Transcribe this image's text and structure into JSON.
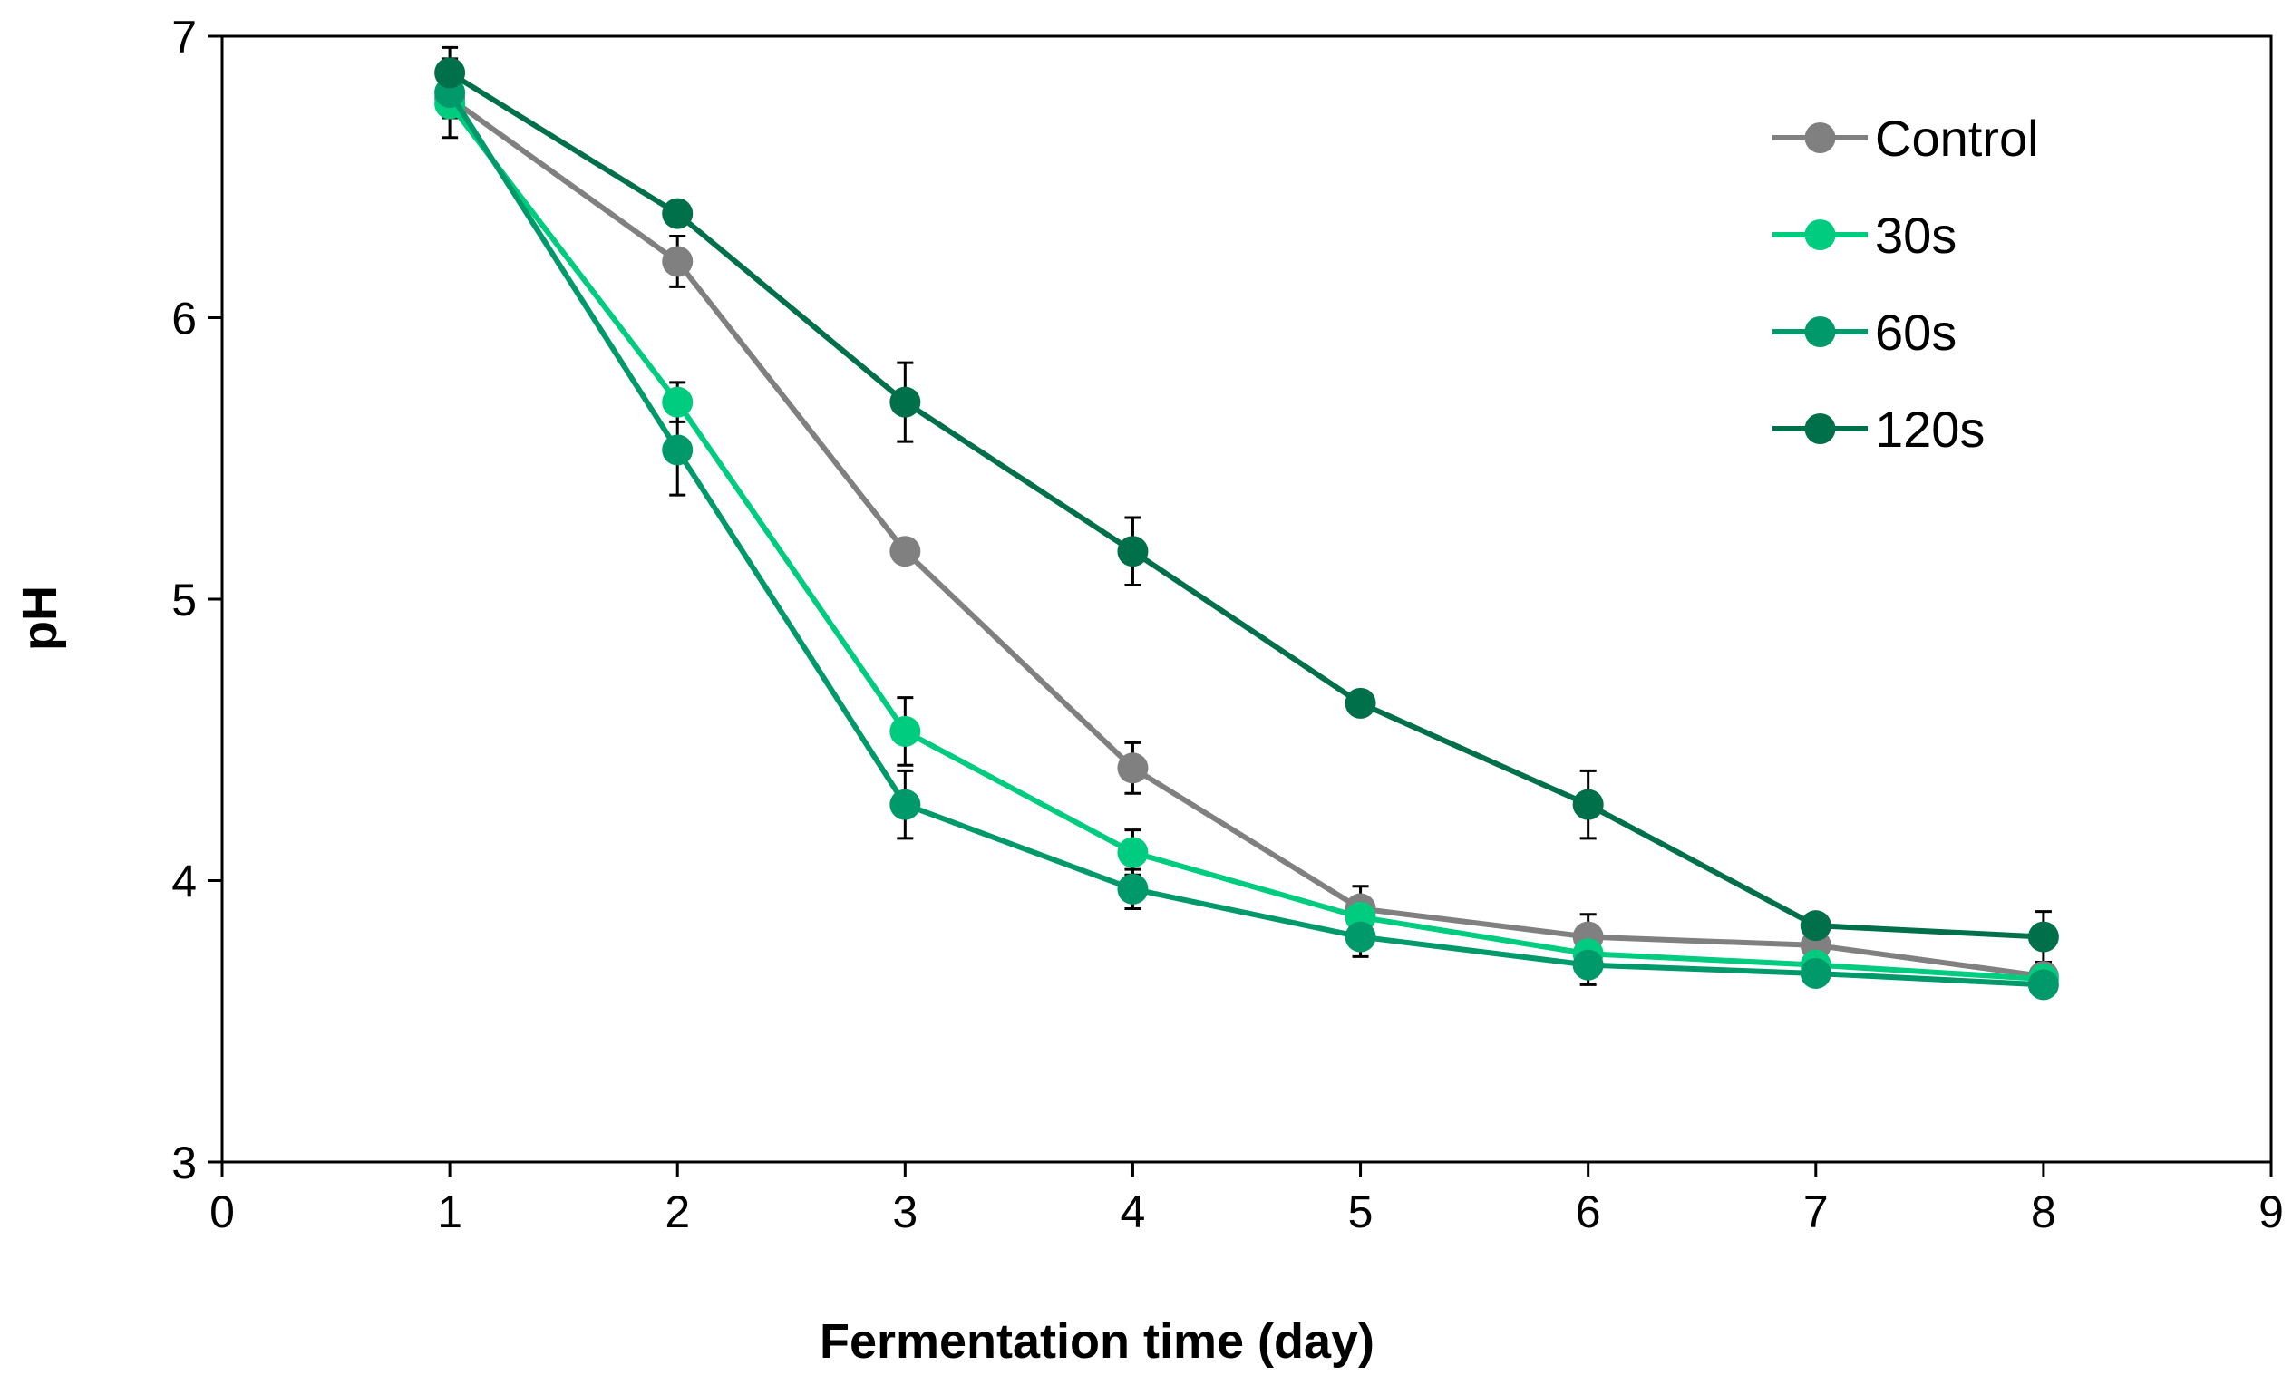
{
  "chart_data": {
    "type": "line",
    "title": "",
    "xlabel": "Fermentation time (day)",
    "ylabel": "pH",
    "xlim": [
      0,
      9
    ],
    "ylim": [
      3,
      7
    ],
    "xticks": [
      "0",
      "1",
      "2",
      "3",
      "4",
      "5",
      "6",
      "7",
      "8",
      "9"
    ],
    "yticks": [
      "3",
      "4",
      "5",
      "6",
      "7"
    ],
    "grid": false,
    "legend_position": "top-right",
    "x": [
      1,
      2,
      3,
      4,
      5,
      6,
      7,
      8
    ],
    "series": [
      {
        "name": "Control",
        "color": "#808080",
        "values": [
          6.78,
          6.2,
          5.17,
          4.4,
          3.9,
          3.8,
          3.77,
          3.66
        ],
        "errors": [
          0.14,
          0.09,
          0.04,
          0.09,
          0.08,
          0.08,
          0.05,
          0.05
        ]
      },
      {
        "name": "30s",
        "color": "#00CC80",
        "values": [
          6.76,
          5.7,
          4.53,
          4.1,
          3.87,
          3.74,
          3.7,
          3.65
        ],
        "errors": [
          0.05,
          0.07,
          0.12,
          0.08,
          0.05,
          0.04,
          0.04,
          0.04
        ]
      },
      {
        "name": "60s",
        "color": "#00996A",
        "values": [
          6.8,
          5.53,
          4.27,
          3.97,
          3.8,
          3.7,
          3.67,
          3.63
        ],
        "errors": [
          0.05,
          0.16,
          0.12,
          0.07,
          0.07,
          0.07,
          0.04,
          0.04
        ]
      },
      {
        "name": "120s",
        "color": "#00704A",
        "values": [
          6.87,
          6.37,
          5.7,
          5.17,
          4.63,
          4.27,
          3.84,
          3.8
        ],
        "errors": [
          0.09,
          0.04,
          0.14,
          0.12,
          0.04,
          0.12,
          0.03,
          0.09
        ]
      }
    ]
  }
}
